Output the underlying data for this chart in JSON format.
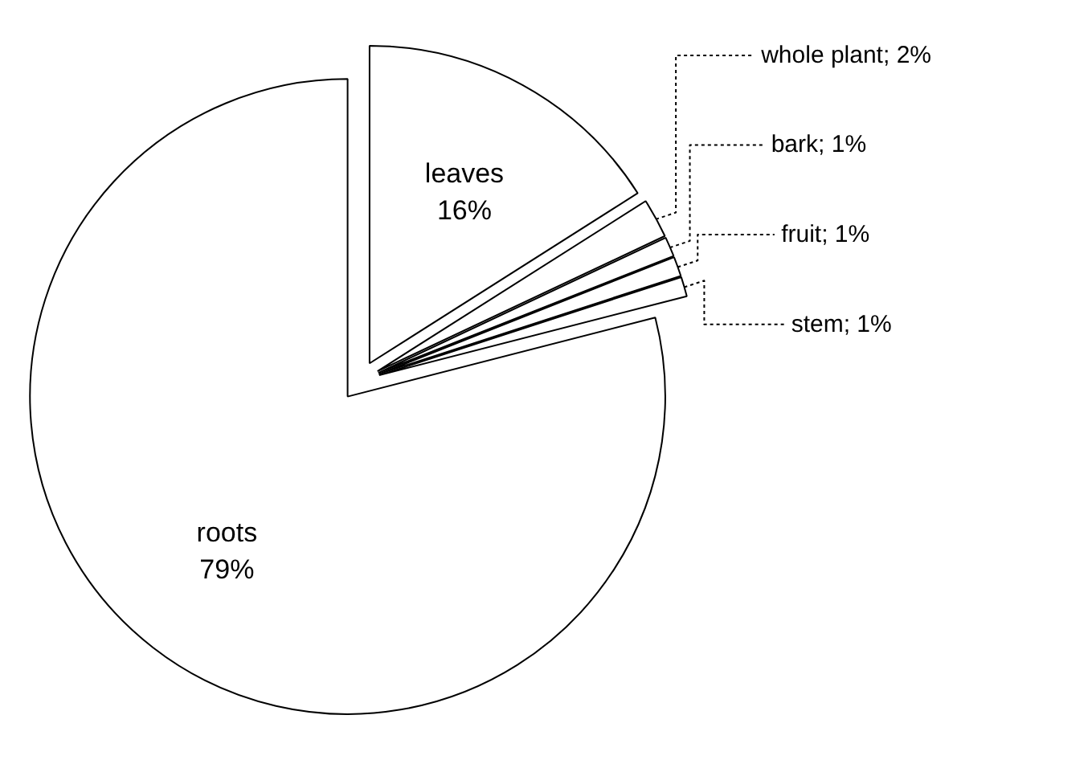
{
  "chart_data": {
    "type": "pie",
    "categories": [
      "leaves",
      "whole plant",
      "bark",
      "fruit",
      "stem",
      "roots"
    ],
    "values": [
      16,
      2,
      1,
      1,
      1,
      79
    ],
    "value_labels": [
      "16%",
      "2%",
      "1%",
      "1%",
      "1%",
      "79%"
    ],
    "colors": [
      "#ffffff",
      "#ffffff",
      "#ffffff",
      "#ffffff",
      "#ffffff",
      "#ffffff"
    ]
  }
}
